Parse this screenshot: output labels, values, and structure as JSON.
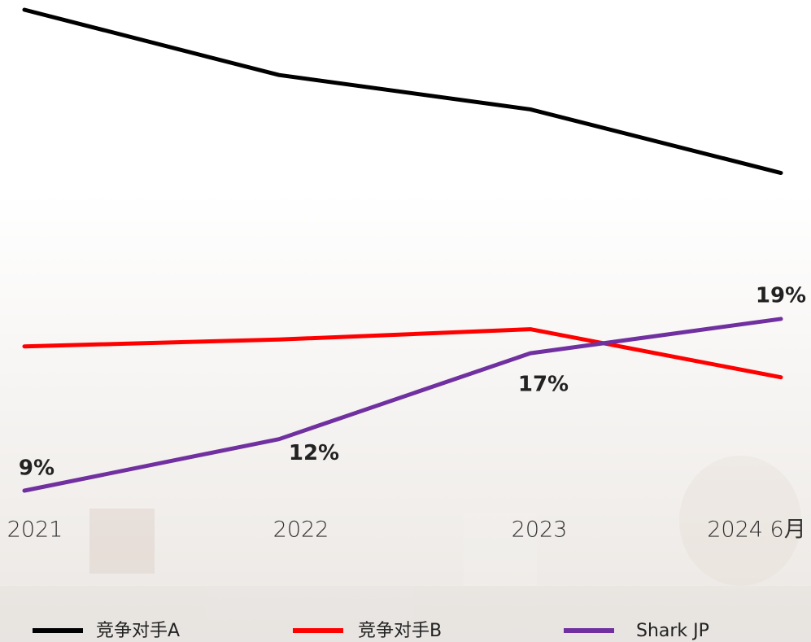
{
  "chart_data": {
    "type": "line",
    "categories": [
      "2021",
      "2022",
      "2023",
      "2024 6月"
    ],
    "series": [
      {
        "name": "竞争对手A",
        "color": "#000000",
        "values": [
          37,
          33.2,
          31.2,
          27.5
        ]
      },
      {
        "name": "竞争对手B",
        "color": "#ff0000",
        "values": [
          17.4,
          17.8,
          18.4,
          15.6
        ]
      },
      {
        "name": "Shark JP",
        "color": "#7030a0",
        "values": [
          9,
          12,
          17,
          19
        ],
        "value_labels": [
          "9%",
          "12%",
          "17%",
          "19%"
        ]
      }
    ],
    "legend": "bottom"
  }
}
